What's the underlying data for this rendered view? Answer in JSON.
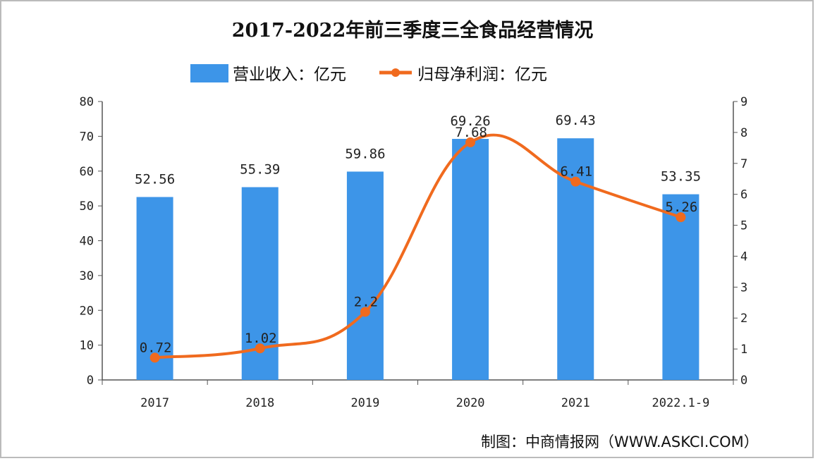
{
  "chart_data": {
    "type": "bar+line",
    "title": "2017-2022年前三季度三全食品经营情况",
    "categories": [
      "2017",
      "2018",
      "2019",
      "2020",
      "2021",
      "2022.1-9"
    ],
    "series": [
      {
        "name": "营业收入：亿元",
        "type": "bar",
        "axis": "left",
        "color": "#3d95e8",
        "values": [
          52.56,
          55.39,
          59.86,
          69.26,
          69.43,
          53.35
        ]
      },
      {
        "name": "归母净利润：亿元",
        "type": "line",
        "axis": "right",
        "color": "#f06a1e",
        "values": [
          0.72,
          1.02,
          2.2,
          7.68,
          6.41,
          5.26
        ]
      }
    ],
    "data_labels": {
      "bar": [
        "52.56",
        "55.39",
        "59.86",
        "69.26",
        "69.43",
        "53.35"
      ],
      "line": [
        "0.72",
        "1.02",
        "2.2",
        "7.68",
        "6.41",
        "5.26"
      ]
    },
    "y_left": {
      "range": [
        0,
        80
      ],
      "ticks": [
        "0",
        "10",
        "20",
        "30",
        "40",
        "50",
        "60",
        "70",
        "80"
      ]
    },
    "y_right": {
      "range": [
        0,
        9
      ],
      "ticks": [
        "0",
        "1",
        "2",
        "3",
        "4",
        "5",
        "6",
        "7",
        "8",
        "9"
      ]
    },
    "grid": false,
    "legend_position": "top-center"
  },
  "source": "制图：中商情报网（WWW.ASKCI.COM）"
}
